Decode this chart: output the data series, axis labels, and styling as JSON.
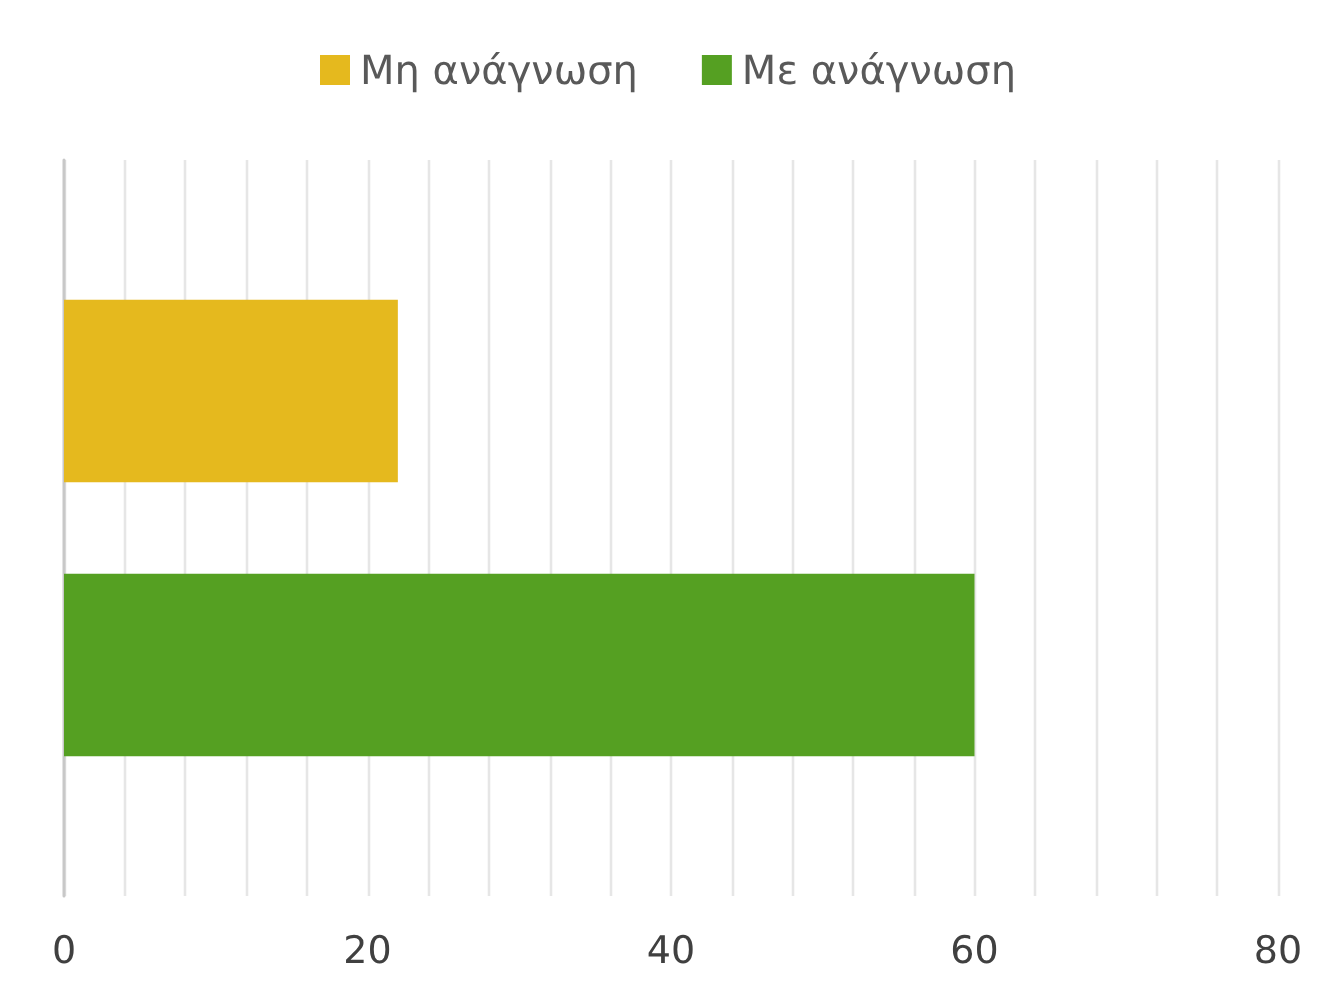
{
  "chart_data": {
    "type": "bar",
    "orientation": "horizontal",
    "categories": [
      null
    ],
    "series": [
      {
        "name": "Μη ανάγνωση",
        "color": "#e5b91e",
        "values": [
          22
        ]
      },
      {
        "name": "Με ανάγνωση",
        "color": "#55a022",
        "values": [
          60
        ]
      }
    ],
    "xlim": [
      0,
      80
    ],
    "xticks": [
      0,
      {
        "value": 4,
        "label": null
      },
      {
        "value": 8,
        "label": null
      },
      {
        "value": 12,
        "label": null
      },
      {
        "value": 16,
        "label": null
      },
      20,
      {
        "value": 24,
        "label": null
      },
      {
        "value": 28,
        "label": null
      },
      {
        "value": 32,
        "label": null
      },
      {
        "value": 36,
        "label": null
      },
      40,
      {
        "value": 44,
        "label": null
      },
      {
        "value": 48,
        "label": null
      },
      {
        "value": 52,
        "label": null
      },
      {
        "value": 56,
        "label": null
      },
      60,
      {
        "value": 64,
        "label": null
      },
      {
        "value": 68,
        "label": null
      },
      {
        "value": 72,
        "label": null
      },
      {
        "value": 76,
        "label": null
      },
      80
    ],
    "grid": true,
    "legend": "top"
  }
}
